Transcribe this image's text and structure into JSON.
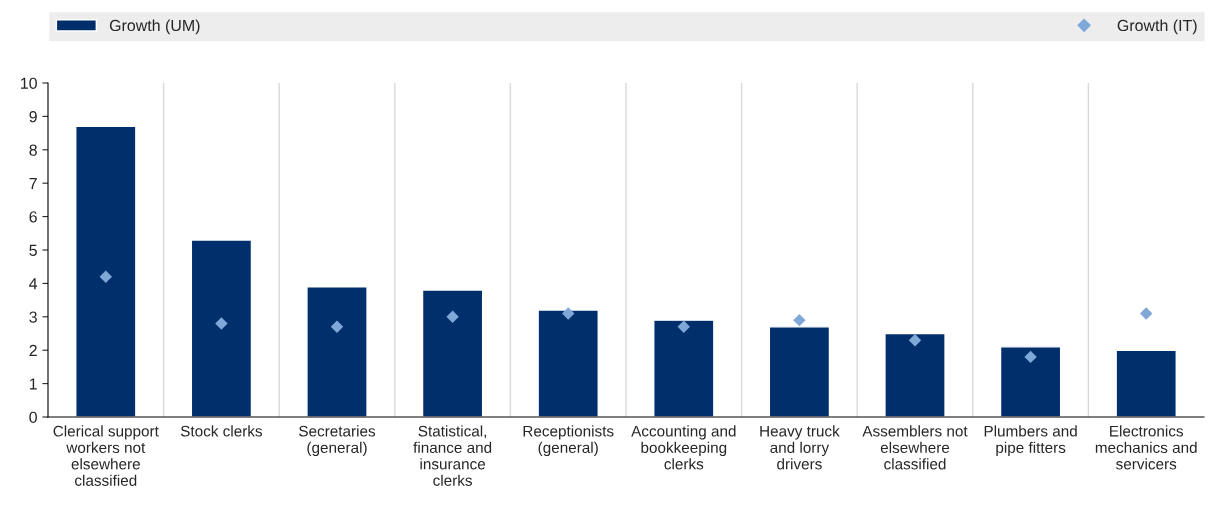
{
  "chart_data": {
    "type": "bar",
    "categories": [
      "Clerical support\nworkers not\nelsewhere\nclassified",
      "Stock clerks",
      "Secretaries\n(general)",
      "Statistical,\nfinance and\ninsurance\nclerks",
      "Receptionists\n(general)",
      "Accounting and\nbookkeeping\nclerks",
      "Heavy truck\nand lorry\ndrivers",
      "Assemblers not\nelsewhere\nclassified",
      "Plumbers and\npipe fitters",
      "Electronics\nmechanics and\nservicers"
    ],
    "series": [
      {
        "name": "Growth (UM)",
        "color": "#002f6c",
        "values": [
          8.7,
          5.3,
          3.9,
          3.8,
          3.2,
          2.9,
          2.7,
          2.5,
          2.1,
          2.0
        ]
      },
      {
        "name": "Growth (IT)",
        "type": "scatter",
        "color": "#7fa8d9",
        "marker": "diamond",
        "values": [
          4.2,
          2.8,
          2.7,
          3.0,
          3.1,
          2.7,
          2.9,
          2.3,
          1.8,
          3.1
        ]
      }
    ],
    "ylim": [
      0,
      10
    ],
    "yticks": [
      0,
      1,
      2,
      3,
      4,
      5,
      6,
      7,
      8,
      9,
      10
    ],
    "grid": "x",
    "legend": "top"
  }
}
